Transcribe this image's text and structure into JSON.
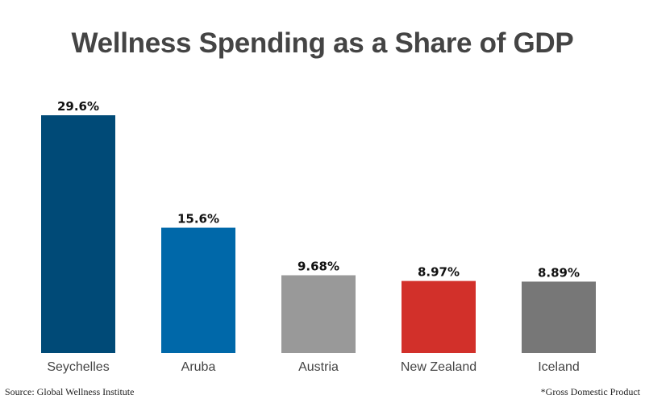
{
  "chart_data": {
    "type": "bar",
    "title": "Wellness Spending as a Share of GDP",
    "categories": [
      "Seychelles",
      "Aruba",
      "Austria",
      "New Zealand",
      "Iceland"
    ],
    "values": [
      29.6,
      15.6,
      9.68,
      8.97,
      8.89
    ],
    "labels": [
      "29.6%",
      "15.6%",
      "9.68%",
      "8.97%",
      "8.89%"
    ],
    "colors": [
      "#004a77",
      "#0068a9",
      "#999999",
      "#d2302a",
      "#777777"
    ],
    "xlabel": "",
    "ylabel": "",
    "ylim": [
      0,
      29.6
    ],
    "grid": false,
    "source": "Source: Global Wellness Institute",
    "footnote": "*Gross Domestic Product"
  }
}
